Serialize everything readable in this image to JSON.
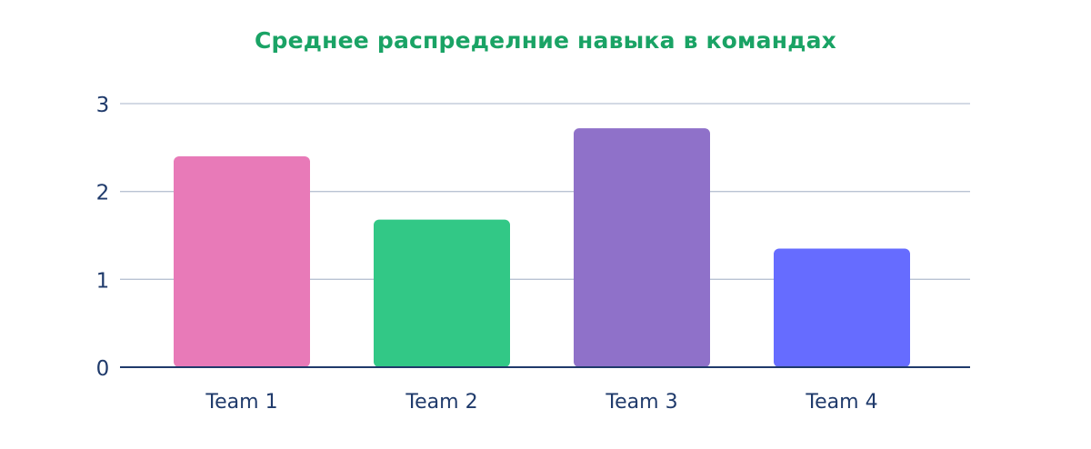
{
  "chart_data": {
    "type": "bar",
    "title": "Среднее распределние навыка в командах",
    "categories": [
      "Team 1",
      "Team 2",
      "Team 3",
      "Team 4"
    ],
    "values": [
      2.4,
      1.68,
      2.72,
      1.35
    ],
    "bar_colors": [
      "#E87AB8",
      "#32C886",
      "#8F71C9",
      "#666CFF"
    ],
    "ylim": [
      0,
      3
    ],
    "yticks": [
      0,
      1,
      2,
      3
    ],
    "grid": true,
    "xlabel": "",
    "ylabel": ""
  },
  "colors": {
    "title": "#1AA365",
    "axis_text": "#1F3A6B",
    "grid": "#B9C3D3",
    "axis_line": "#1F3A6B"
  }
}
